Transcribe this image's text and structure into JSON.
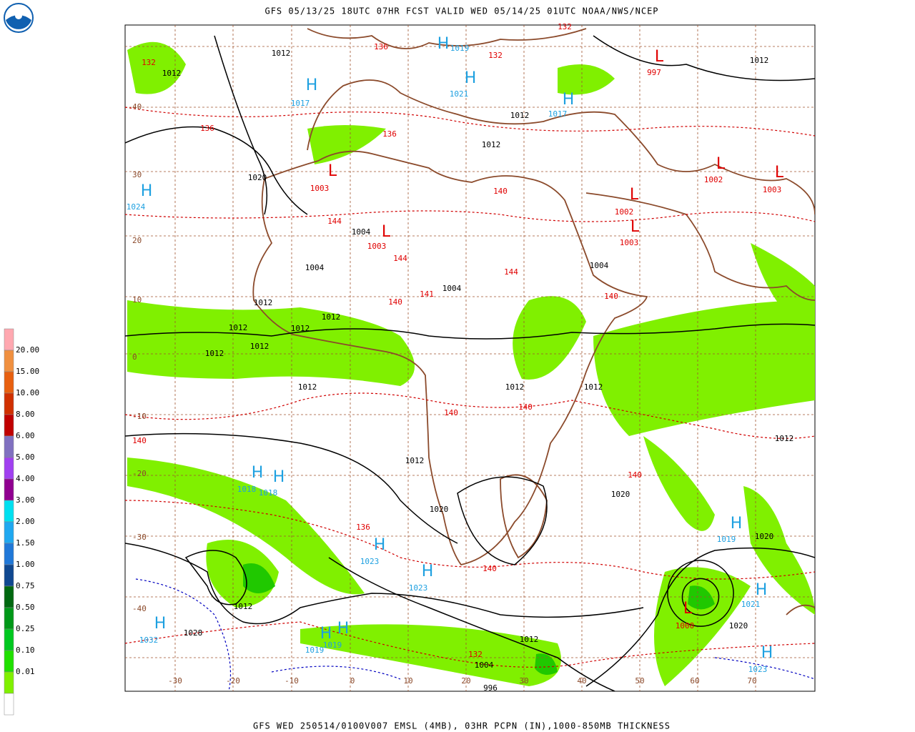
{
  "header": {
    "title": "GFS 05/13/25 18UTC 07HR FCST VALID WED 05/14/25 01UTC NOAA/NWS/NCEP"
  },
  "footer": {
    "caption": "GFS WED 250514/0100V007 EMSL (4MB), 03HR PCPN (IN),1000-850MB THICKNESS"
  },
  "legend": {
    "labels": [
      "20.00",
      "15.00",
      "10.00",
      "8.00",
      "6.00",
      "5.00",
      "4.00",
      "3.00",
      "2.00",
      "1.50",
      "1.00",
      "0.75",
      "0.50",
      "0.25",
      "0.10",
      "0.01"
    ],
    "colors": [
      "#ffa8b0",
      "#f09040",
      "#e86010",
      "#d03000",
      "#c00000",
      "#8070c0",
      "#a040f0",
      "#900090",
      "#00e0f0",
      "#20a8f0",
      "#2078d8",
      "#104890",
      "#006810",
      "#009818",
      "#00c820",
      "#20e000",
      "#80f000",
      "#ffffff"
    ]
  },
  "map": {
    "longitude_labels": [
      "-30",
      "-20",
      "-10",
      "0",
      "10",
      "20",
      "30",
      "40",
      "50",
      "60",
      "70"
    ],
    "latitude_labels": [
      "40",
      "30",
      "20",
      "10",
      "0",
      "-10",
      "-20",
      "-30",
      "-40"
    ],
    "highs": [
      {
        "symbol": "H",
        "value": "1017"
      },
      {
        "symbol": "H",
        "value": "1019"
      },
      {
        "symbol": "H",
        "value": "1021"
      },
      {
        "symbol": "H",
        "value": "1017"
      },
      {
        "symbol": "H",
        "value": "1024"
      },
      {
        "symbol": "H",
        "value": "1018"
      },
      {
        "symbol": "H",
        "value": "1018"
      },
      {
        "symbol": "H",
        "value": "1023"
      },
      {
        "symbol": "H",
        "value": "1023"
      },
      {
        "symbol": "H",
        "value": "1019"
      },
      {
        "symbol": "H",
        "value": "1019"
      },
      {
        "symbol": "H",
        "value": "1032"
      },
      {
        "symbol": "H",
        "value": "1019"
      },
      {
        "symbol": "H",
        "value": "1023"
      },
      {
        "symbol": "H",
        "value": "1021"
      }
    ],
    "lows": [
      {
        "symbol": "L",
        "value": "997"
      },
      {
        "symbol": "L",
        "value": "1003"
      },
      {
        "symbol": "L",
        "value": "1002"
      },
      {
        "symbol": "L",
        "value": "1003"
      },
      {
        "symbol": "L",
        "value": "1002"
      },
      {
        "symbol": "L",
        "value": "1003"
      },
      {
        "symbol": "L",
        "value": "1003"
      },
      {
        "symbol": "L",
        "value": "1000"
      }
    ],
    "isobar_labels": [
      "1012",
      "1012",
      "1012",
      "1012",
      "1012",
      "1020",
      "1012",
      "1012",
      "1012",
      "1012",
      "1012",
      "1012",
      "1012",
      "1012",
      "1012",
      "1012",
      "1012",
      "1020",
      "1020",
      "1012",
      "1004",
      "996",
      "1020",
      "1012",
      "1020",
      "1028",
      "1004",
      "1004",
      "1004",
      "1004"
    ],
    "thickness_labels": [
      "132",
      "136",
      "136",
      "132",
      "132",
      "140",
      "144",
      "144",
      "144",
      "141",
      "140",
      "140",
      "140",
      "136",
      "140",
      "132",
      "140",
      "140",
      "136",
      "140"
    ]
  }
}
